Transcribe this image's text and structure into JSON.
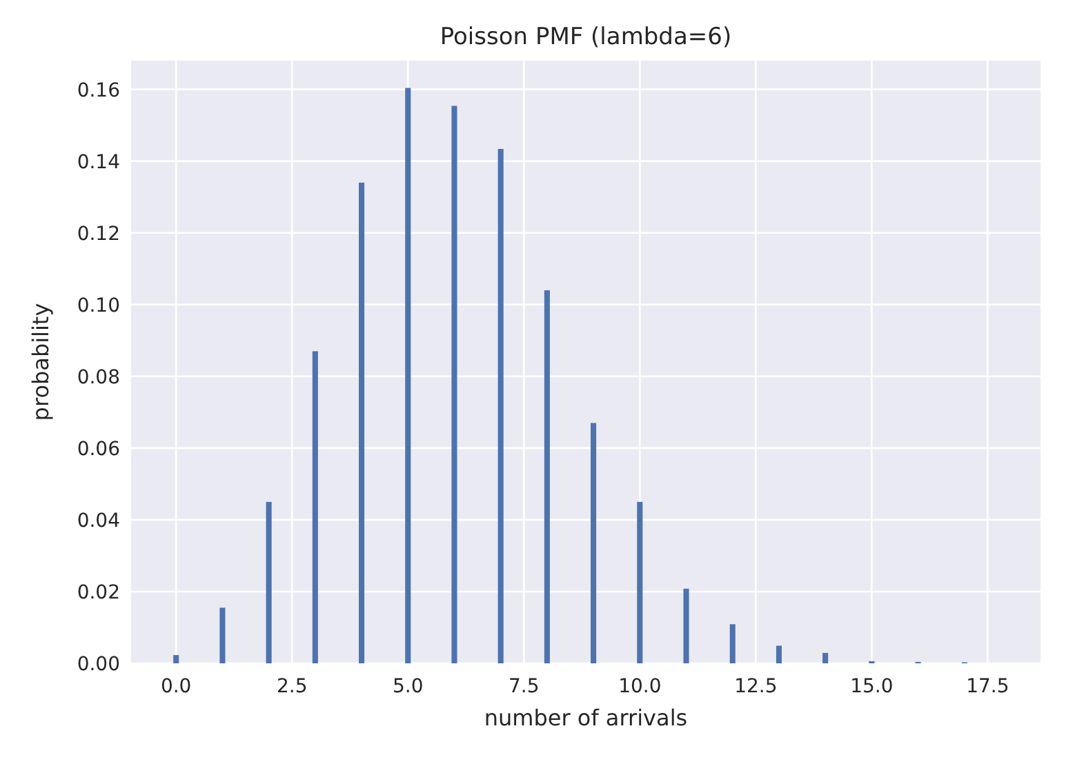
{
  "chart_data": {
    "type": "bar",
    "title": "Poisson PMF (lambda=6)",
    "xlabel": "number of arrivals",
    "ylabel": "probability",
    "x": [
      0,
      1,
      2,
      3,
      4,
      5,
      6,
      7,
      8,
      9,
      10,
      11,
      12,
      13,
      14,
      15,
      16,
      17
    ],
    "values": [
      0.0023,
      0.0155,
      0.045,
      0.087,
      0.134,
      0.1604,
      0.1554,
      0.1434,
      0.104,
      0.067,
      0.045,
      0.0208,
      0.0109,
      0.0049,
      0.0029,
      0.0006,
      0.0004,
      0.0003
    ],
    "color": "#4c72b0",
    "xlim": [
      -0.97,
      18.64
    ],
    "xticks": [
      {
        "value": 0,
        "label": "0.0"
      },
      2.5,
      {
        "value": 5,
        "label": "5.0"
      },
      7.5,
      {
        "value": 10,
        "label": "10.0"
      },
      12.5,
      {
        "value": 15,
        "label": "15.0"
      },
      17.5
    ],
    "ylim": [
      0,
      0.168
    ],
    "yticks": [
      {
        "value": 0,
        "label": "0.00"
      },
      0.02,
      0.04,
      0.06,
      0.08,
      {
        "value": 0.1,
        "label": "0.10"
      },
      0.12,
      0.14,
      0.16
    ],
    "grid": true
  }
}
